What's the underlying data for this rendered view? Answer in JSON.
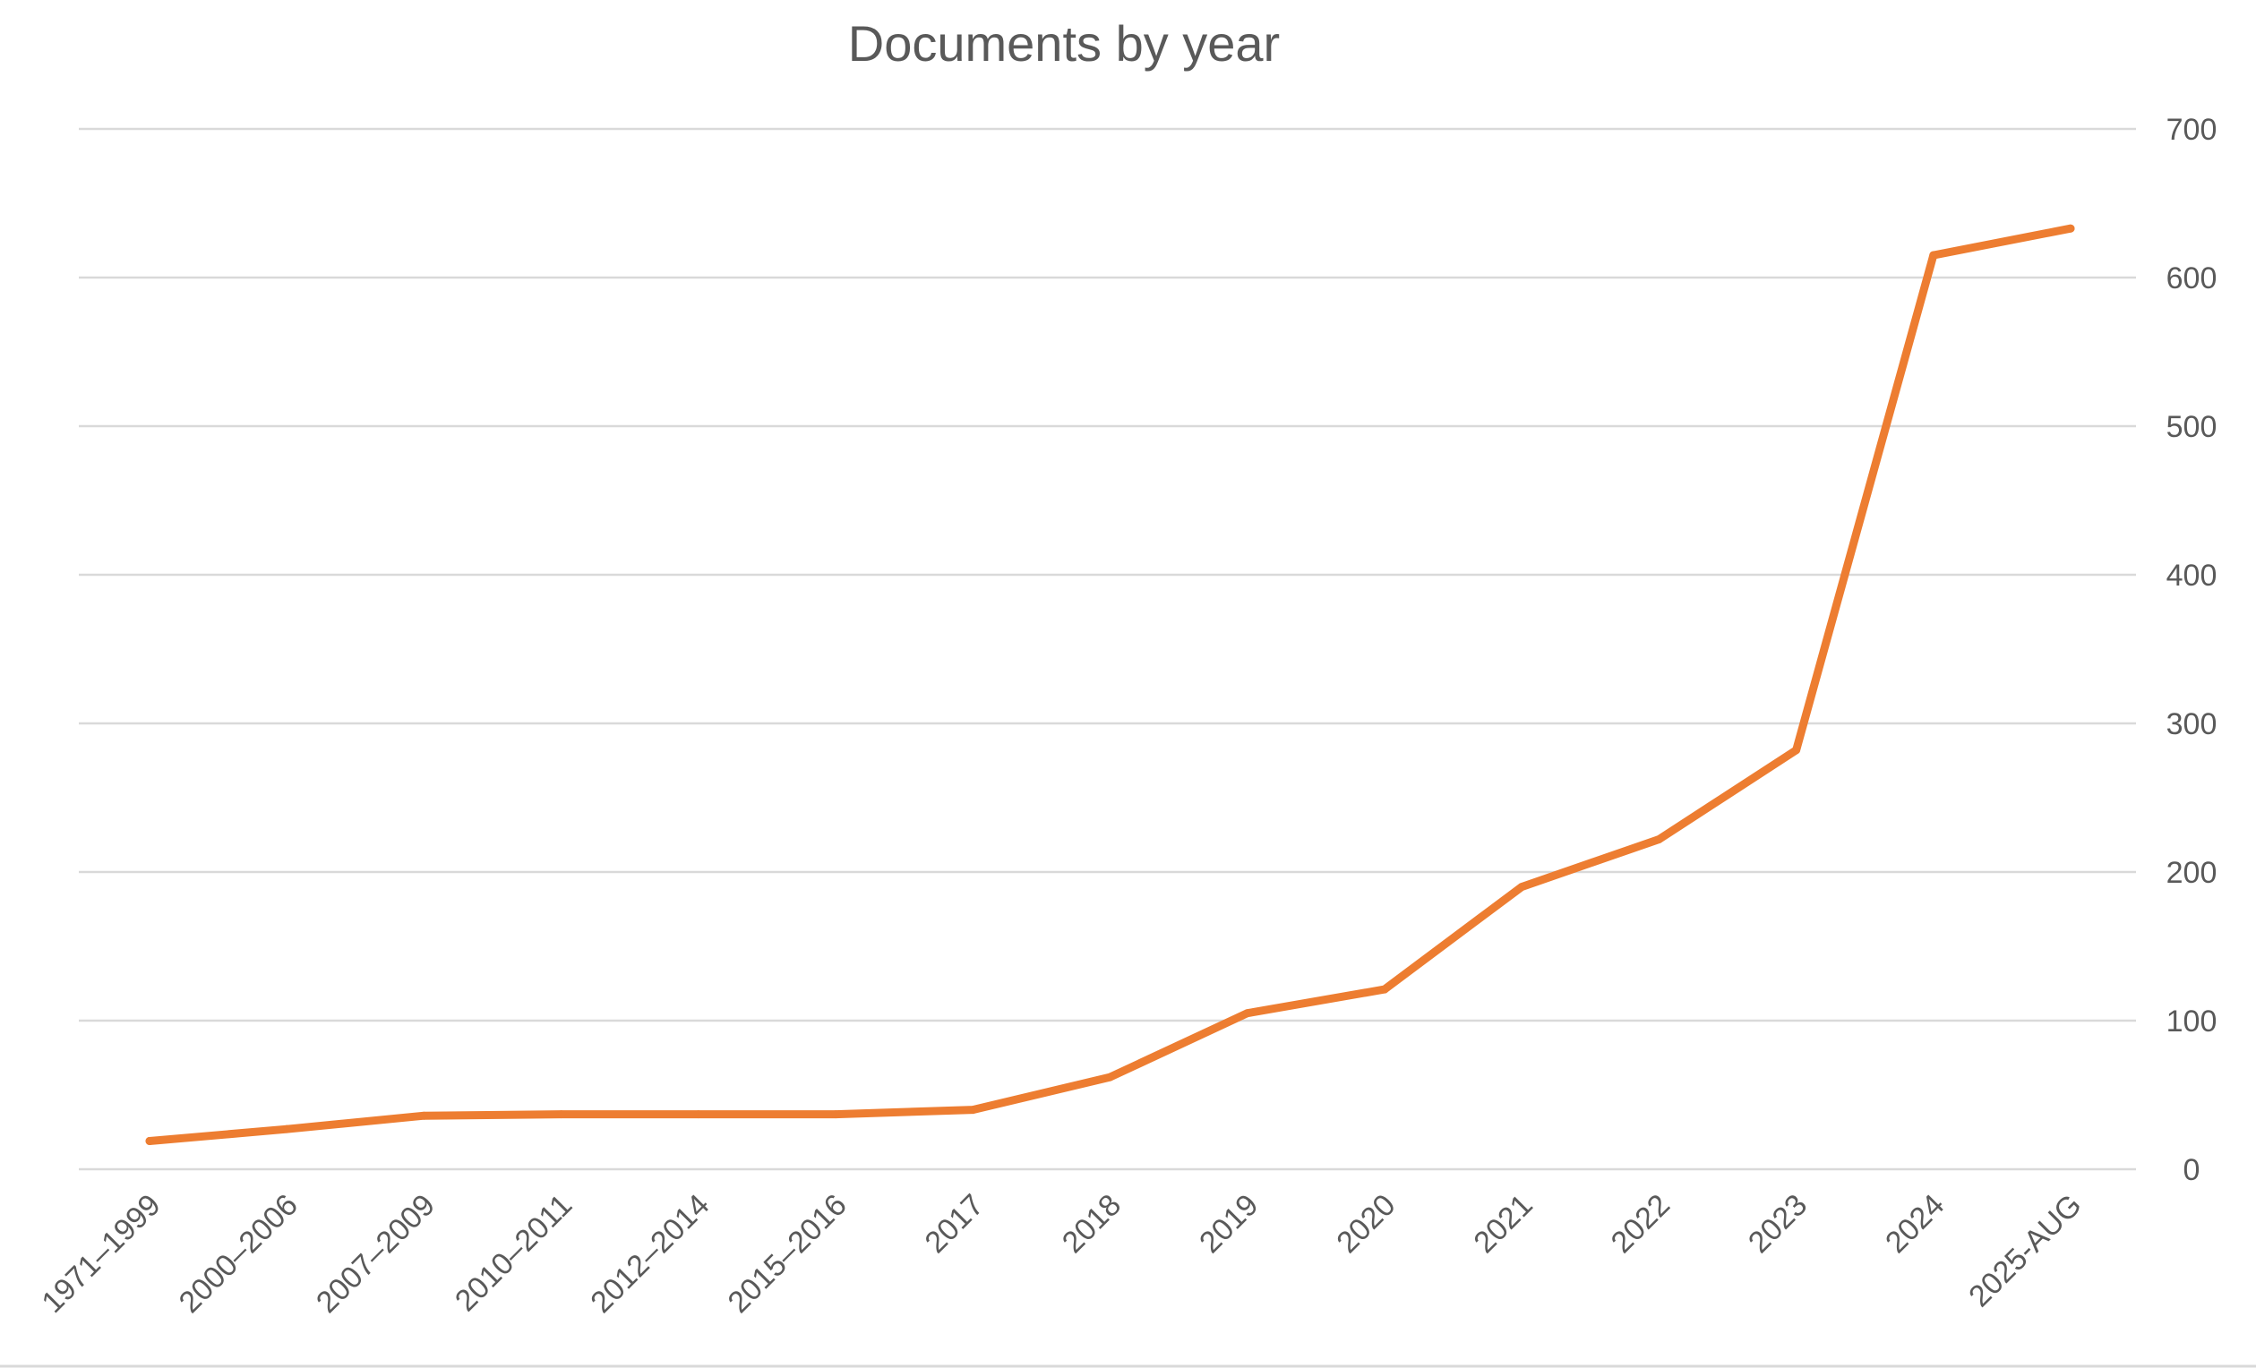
{
  "chart_data": {
    "type": "line",
    "title": "Documents by year",
    "xlabel": "",
    "ylabel": "",
    "categories": [
      "1971–1999",
      "2000–2006",
      "2007–2009",
      "2010–2011",
      "2012–2014",
      "2015–2016",
      "2017",
      "2018",
      "2019",
      "2020",
      "2021",
      "2022",
      "2023",
      "2024",
      "2025-AUG"
    ],
    "series": [
      {
        "values": [
          19,
          27,
          36,
          37,
          37,
          37,
          40,
          62,
          105,
          121,
          190,
          222,
          282,
          615,
          633
        ]
      }
    ],
    "ylim": [
      0,
      700
    ],
    "yticks": [
      0,
      100,
      200,
      300,
      400,
      500,
      600,
      700
    ],
    "y_axis_side": "right",
    "grid": true,
    "legend": "none",
    "colors": {
      "line": "#ed7d31",
      "grid": "#d9d9d9",
      "text": "#595959"
    }
  }
}
